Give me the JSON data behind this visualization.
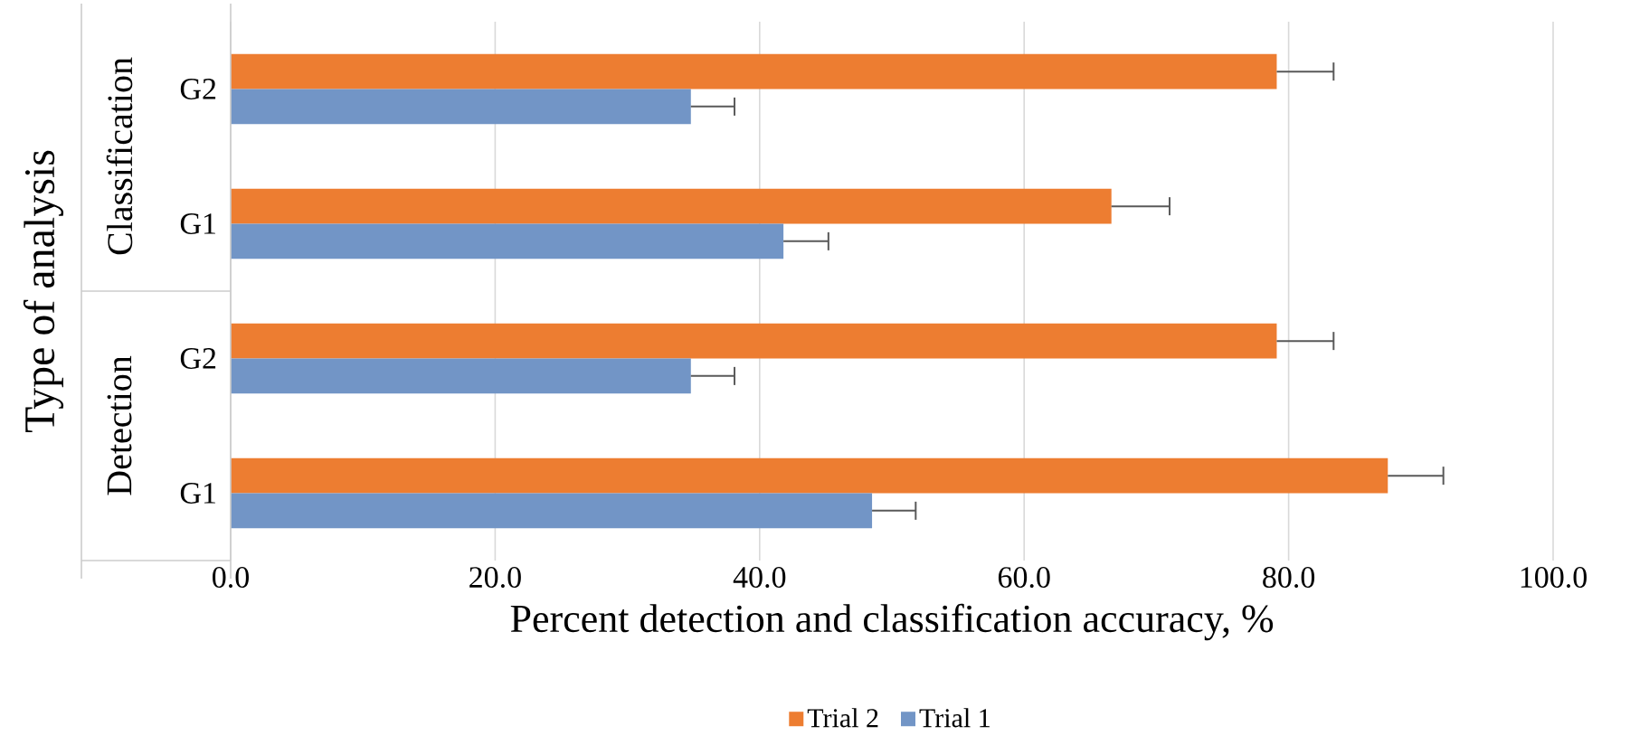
{
  "chart_data": {
    "type": "bar",
    "orientation": "horizontal",
    "xlabel": "Percent detection and classification accuracy, %",
    "ylabel": "Type of analysis",
    "categories": [
      "G2",
      "G1",
      "G2",
      "G1"
    ],
    "annotations": [
      "Classification",
      "Detection"
    ],
    "series": [
      {
        "name": "Trial 2",
        "color": "#ed7d31",
        "values": [
          79.1,
          66.6,
          79.1,
          87.5
        ],
        "errors": [
          [
            79.1,
            83.4
          ],
          [
            66.6,
            71.0
          ],
          [
            79.1,
            83.4
          ],
          [
            87.5,
            91.7
          ]
        ]
      },
      {
        "name": "Trial 1",
        "color": "#7295c6",
        "values": [
          34.8,
          41.8,
          34.8,
          48.5
        ],
        "errors": [
          [
            34.8,
            38.1
          ],
          [
            41.8,
            45.2
          ],
          [
            34.8,
            38.1
          ],
          [
            48.5,
            51.8
          ]
        ]
      }
    ],
    "xlim": [
      0,
      100
    ],
    "xticks": [
      {
        "value": 0,
        "label": "0.0"
      },
      {
        "value": 20,
        "label": "20.0"
      },
      {
        "value": 40,
        "label": "40.0"
      },
      {
        "value": 60,
        "label": "60.0"
      },
      {
        "value": 80,
        "label": "80.0"
      },
      {
        "value": 100,
        "label": "100.0"
      }
    ],
    "grid": "x",
    "legend": "bottom"
  }
}
